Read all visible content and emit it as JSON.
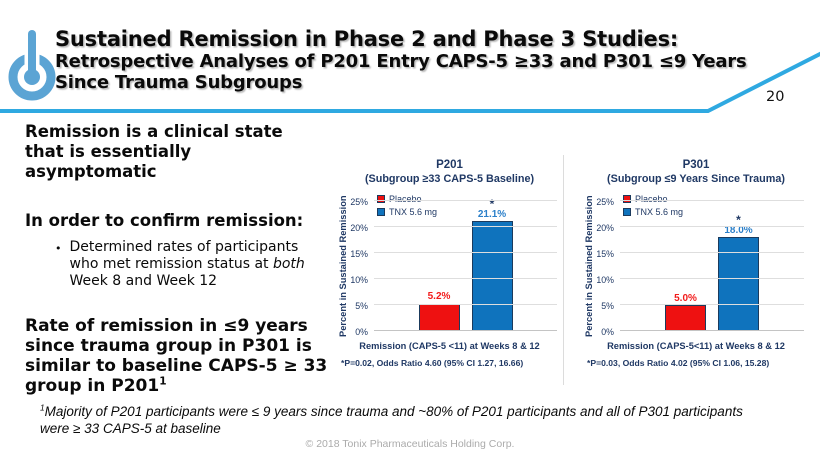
{
  "slide": {
    "header": {
      "title_line1": "Sustained Remission in Phase 2 and Phase 3 Studies:",
      "title_line2": "Retrospective Analyses of P201 Entry CAPS-5 ≥33 and P301 ≤9 Years Since Trauma Subgroups",
      "page_number": "20",
      "logo_icon": "power-button-logo"
    },
    "left_column": {
      "statement1": "Remission is a clinical state that is essentially asymptomatic",
      "statement2": "In order to confirm remission:",
      "bullet_marker": "•",
      "bullet": {
        "pre": "Determined rates of participants who met remission status at ",
        "italic": "both",
        "post": " Week 8 and Week 12"
      },
      "statement3": "Rate of remission in ≤9 years since trauma group in P301 is similar to baseline CAPS-5 ≥ 33 group in P201",
      "statement3_sup": "1"
    },
    "footnote": {
      "sup": "1",
      "text": "Majority of P201 participants were ≤ 9 years since trauma and ~80% of P201 participants and all of P301 participants were ≥ 33 CAPS-5 at baseline"
    },
    "copyright": "© 2018 Tonix Pharmaceuticals Holding Corp."
  },
  "chart_data": [
    {
      "type": "bar",
      "title": "P201",
      "subtitle": "(Subgroup ≥33 CAPS-5 Baseline)",
      "ylabel": "Percent in Sustained Remission",
      "xlabel": "Remission (CAPS-5 <11) at Weeks 8 & 12",
      "footnote": "*P=0.02, Odds Ratio 4.60 (95% CI 1.27, 16.66)",
      "ylim": [
        0,
        25
      ],
      "ytick_step": 5,
      "yticks": [
        "0%",
        "5%",
        "10%",
        "15%",
        "20%",
        "25%"
      ],
      "grid": true,
      "legend_position": "top-left",
      "series": [
        {
          "name": "Placebo",
          "value": 5.2,
          "label": "5.2%",
          "color": "#ee1111",
          "label_color": "#f21b1b",
          "significant": false
        },
        {
          "name": "TNX 5.6 mg",
          "value": 21.1,
          "label": "21.1%",
          "color": "#0f73bd",
          "label_color": "#2a7fc9",
          "significant": true
        }
      ]
    },
    {
      "type": "bar",
      "title": "P301",
      "subtitle": "(Subgroup ≤9 Years Since Trauma)",
      "ylabel": "Percent in Sustained Remission",
      "xlabel": "Remission (CAPS-5<11) at Weeks 8 & 12",
      "footnote": "*P=0.03, Odds Ratio 4.02 (95% CI 1.06, 15.28)",
      "ylim": [
        0,
        25
      ],
      "ytick_step": 5,
      "yticks": [
        "0%",
        "5%",
        "10%",
        "15%",
        "20%",
        "25%"
      ],
      "grid": true,
      "legend_position": "top-left",
      "series": [
        {
          "name": "Placebo",
          "value": 5.0,
          "label": "5.0%",
          "color": "#ee1111",
          "label_color": "#f21b1b",
          "significant": false
        },
        {
          "name": "TNX 5.6 mg",
          "value": 18.0,
          "label": "18.0%",
          "color": "#0f73bd",
          "label_color": "#2a7fc9",
          "significant": true
        }
      ]
    }
  ],
  "colors": {
    "navy_text": "#1f3864",
    "asterisk": "#1f3864",
    "bar_blue": "#0f73bd",
    "bar_red": "#ee1111",
    "bar_border": "#1b3a5c",
    "accent_line": "#2fa9e1",
    "logo_blue": "#5ba4d4",
    "gridline": "#dedede",
    "copyright_gray": "#ababab"
  }
}
